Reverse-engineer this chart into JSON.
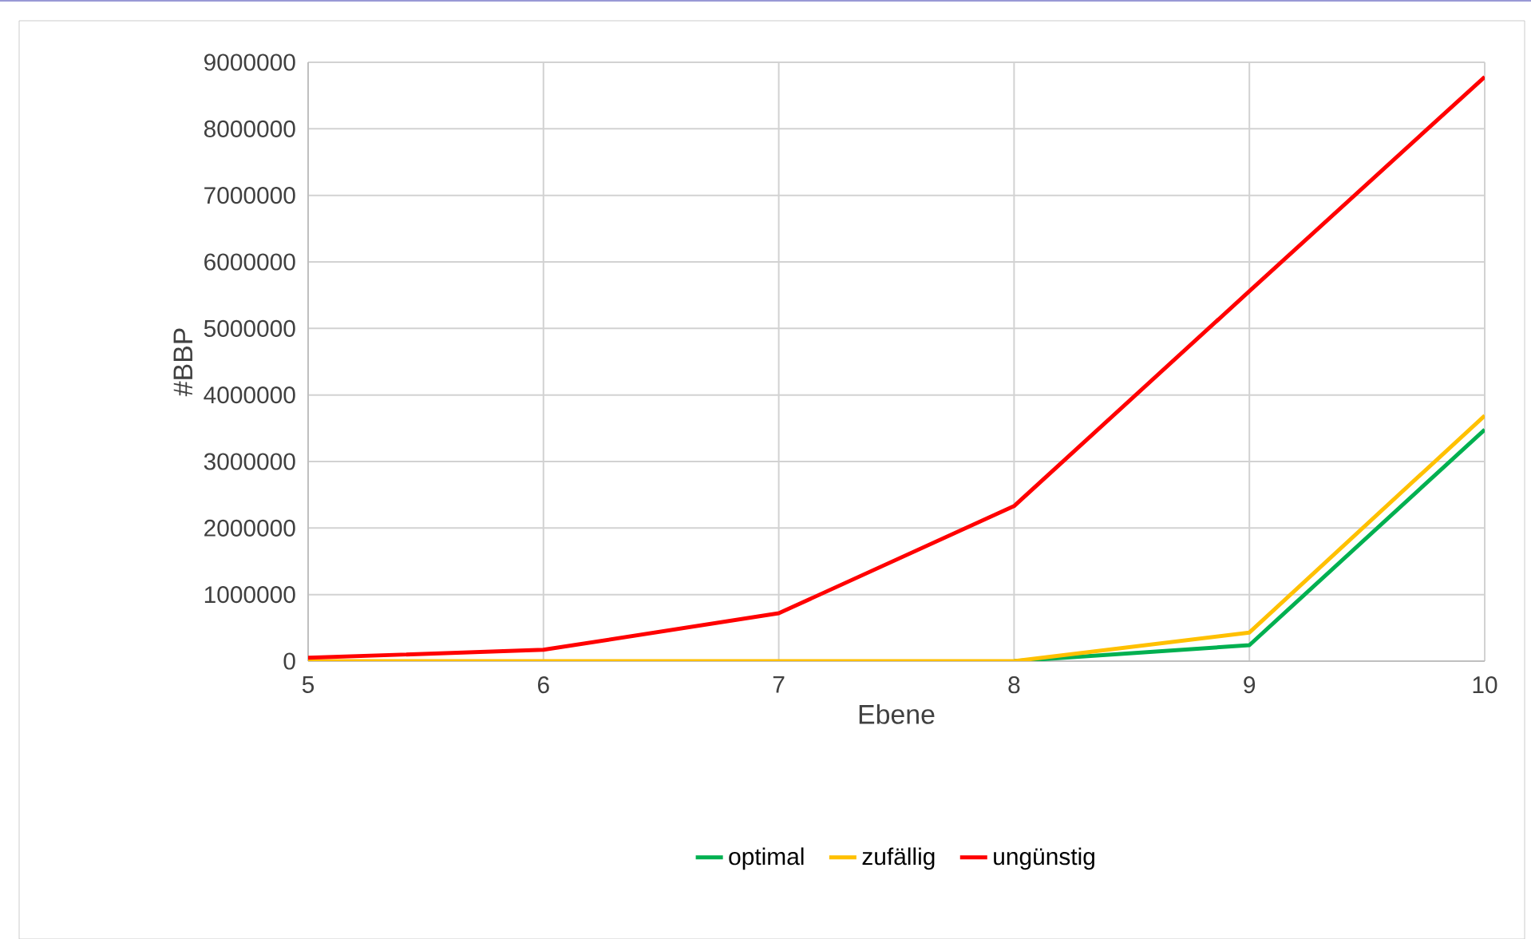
{
  "chart_data": {
    "type": "line",
    "xlabel": "Ebene",
    "ylabel": "#BBP",
    "x": [
      5,
      6,
      7,
      8,
      9,
      10
    ],
    "series": [
      {
        "name": "optimal",
        "color": "#00b050",
        "values": [
          null,
          null,
          null,
          0,
          240000,
          3480000
        ]
      },
      {
        "name": "zufällig",
        "color": "#ffc000",
        "values": [
          0,
          0,
          0,
          0,
          430000,
          3690000
        ]
      },
      {
        "name": "ungünstig",
        "color": "#ff0000",
        "values": [
          50000,
          170000,
          720000,
          2330000,
          5560000,
          8780000
        ]
      }
    ],
    "xlim": [
      5,
      10
    ],
    "xticks": [
      5,
      6,
      7,
      8,
      9,
      10
    ],
    "ylim": [
      0,
      9000000
    ],
    "yticks": [
      0,
      1000000,
      2000000,
      3000000,
      4000000,
      5000000,
      6000000,
      7000000,
      8000000,
      9000000
    ],
    "grid": true,
    "legend": "bottom",
    "marker": "none",
    "line_style": "solid"
  }
}
